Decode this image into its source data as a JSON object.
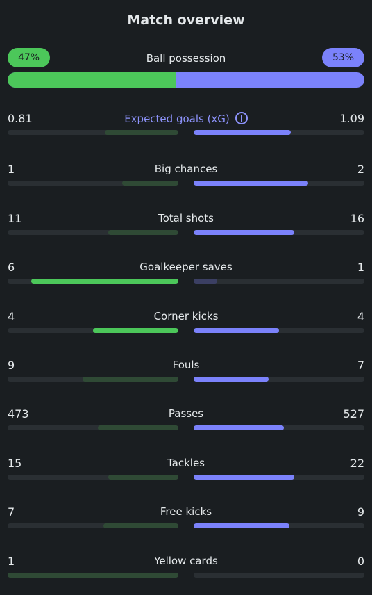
{
  "title": "Match overview",
  "possession": {
    "label": "Ball possession",
    "home": "47%",
    "away": "53%",
    "home_pct": 47
  },
  "colors": {
    "home_strong": "#4cc75a",
    "home_dim": "#2f4a35",
    "away_strong": "#7b82fb",
    "away_dim": "#3b3f63",
    "background": "#1a1e21"
  },
  "stats": [
    {
      "label": "Expected goals (xG)",
      "home": "0.81",
      "away": "1.09",
      "home_frac": 0.43,
      "away_frac": 0.57,
      "home_lead": false,
      "away_lead": true,
      "info_icon": true
    },
    {
      "label": "Big chances",
      "home": "1",
      "away": "2",
      "home_frac": 0.33,
      "away_frac": 0.67,
      "home_lead": false,
      "away_lead": true
    },
    {
      "label": "Total shots",
      "home": "11",
      "away": "16",
      "home_frac": 0.41,
      "away_frac": 0.59,
      "home_lead": false,
      "away_lead": true
    },
    {
      "label": "Goalkeeper saves",
      "home": "6",
      "away": "1",
      "home_frac": 0.86,
      "away_frac": 0.14,
      "home_lead": true,
      "away_lead": false
    },
    {
      "label": "Corner kicks",
      "home": "4",
      "away": "4",
      "home_frac": 0.5,
      "away_frac": 0.5,
      "home_lead": true,
      "away_lead": true
    },
    {
      "label": "Fouls",
      "home": "9",
      "away": "7",
      "home_frac": 0.56,
      "away_frac": 0.44,
      "home_lead": false,
      "away_lead": true
    },
    {
      "label": "Passes",
      "home": "473",
      "away": "527",
      "home_frac": 0.47,
      "away_frac": 0.53,
      "home_lead": false,
      "away_lead": true
    },
    {
      "label": "Tackles",
      "home": "15",
      "away": "22",
      "home_frac": 0.41,
      "away_frac": 0.59,
      "home_lead": false,
      "away_lead": true
    },
    {
      "label": "Free kicks",
      "home": "7",
      "away": "9",
      "home_frac": 0.44,
      "away_frac": 0.56,
      "home_lead": false,
      "away_lead": true
    },
    {
      "label": "Yellow cards",
      "home": "1",
      "away": "0",
      "home_frac": 1.0,
      "away_frac": 0.0,
      "home_lead": false,
      "away_lead": false
    }
  ]
}
